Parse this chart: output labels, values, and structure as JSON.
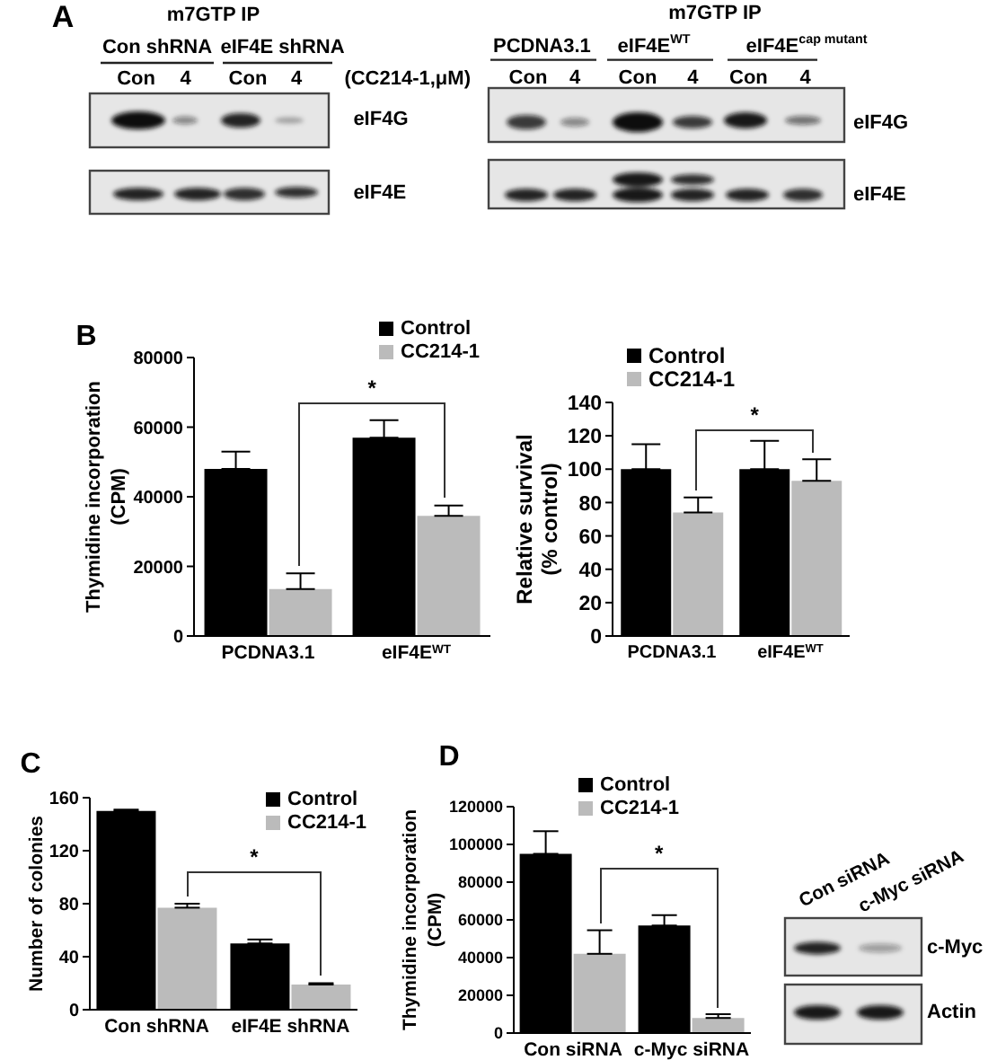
{
  "chart_data": [
    {
      "type": "other",
      "title": "m7GTP IP",
      "annotations": [
        "A",
        "Con shRNA",
        "eIF4E shRNA",
        "Con",
        "4",
        "Con",
        "4",
        "(CC214-1,μM)",
        "eIF4G",
        "eIF4E"
      ]
    },
    {
      "type": "other",
      "title": "m7GTP IP",
      "annotations": [
        "PCDNA3.1",
        "eIF4E$^{WT}$",
        "eIF4E$^{cap mutant}$",
        "Con",
        "4",
        "Con",
        "4",
        "Con",
        "4",
        "eIF4G",
        "eIF4E"
      ]
    },
    {
      "type": "bar",
      "categories": [
        "PCDNA3.1",
        "eIF4E$^{WT}$"
      ],
      "ylabel": "Thymidine incorporation\n(CPM)",
      "series": [
        {
          "name": "Control",
          "color": "#000000",
          "values": [
            48000,
            57000
          ],
          "errors": [
            [
              48000,
              53000
            ],
            [
              57000,
              62000
            ]
          ]
        },
        {
          "name": "CC214-1",
          "color": "#bbbbbb",
          "values": [
            13500,
            34500
          ],
          "errors": [
            [
              13500,
              18000
            ],
            [
              34500,
              37500
            ]
          ]
        }
      ],
      "ylim": [
        0,
        80000
      ],
      "yticks": [
        0,
        20000,
        40000,
        60000,
        80000
      ],
      "legend": "top right",
      "annotations": [
        "B",
        "*"
      ]
    },
    {
      "type": "bar",
      "categories": [
        "PCDNA3.1",
        "eIF4E$^{WT}$"
      ],
      "ylabel": "Relative survival\n(% control)",
      "series": [
        {
          "name": "Control",
          "color": "#000000",
          "values": [
            100,
            100
          ],
          "errors": [
            [
              100,
              115
            ],
            [
              100,
              117
            ]
          ]
        },
        {
          "name": "CC214-1",
          "color": "#bbbbbb",
          "values": [
            74,
            93
          ],
          "errors": [
            [
              74,
              83
            ],
            [
              93,
              106
            ]
          ]
        }
      ],
      "ylim": [
        0,
        140
      ],
      "yticks": [
        0,
        20,
        40,
        60,
        80,
        100,
        120,
        140
      ],
      "legend": "top left",
      "annotations": [
        "*"
      ]
    },
    {
      "type": "bar",
      "categories": [
        "Con shRNA",
        "eIF4E shRNA"
      ],
      "ylabel": "Number of colonies",
      "series": [
        {
          "name": "Control",
          "color": "#000000",
          "values": [
            150,
            50
          ],
          "errors": [
            [
              150,
              151
            ],
            [
              50,
              53
            ]
          ]
        },
        {
          "name": "CC214-1",
          "color": "#bbbbbb",
          "values": [
            77,
            19
          ],
          "errors": [
            [
              77,
              80
            ],
            [
              19,
              20
            ]
          ]
        }
      ],
      "ylim": [
        0,
        160
      ],
      "yticks": [
        0,
        40,
        80,
        120,
        160
      ],
      "legend": "top right",
      "annotations": [
        "C",
        "*"
      ]
    },
    {
      "type": "bar",
      "categories": [
        "Con siRNA",
        "c-Myc siRNA"
      ],
      "ylabel": "Thymidine incorporation\n(CPM)",
      "series": [
        {
          "name": "Control",
          "color": "#000000",
          "values": [
            95000,
            57000
          ],
          "errors": [
            [
              95000,
              107000
            ],
            [
              57000,
              62500
            ]
          ]
        },
        {
          "name": "CC214-1",
          "color": "#bbbbbb",
          "values": [
            42000,
            8000
          ],
          "errors": [
            [
              42000,
              54500
            ],
            [
              8000,
              10000
            ]
          ]
        }
      ],
      "ylim": [
        0,
        120000
      ],
      "yticks": [
        0,
        20000,
        40000,
        60000,
        80000,
        100000,
        120000
      ],
      "legend": "top",
      "annotations": [
        "D",
        "*"
      ]
    },
    {
      "type": "other",
      "annotations": [
        "Con siRNA",
        "c-Myc siRNA",
        "c-Myc",
        "Actin"
      ]
    }
  ]
}
